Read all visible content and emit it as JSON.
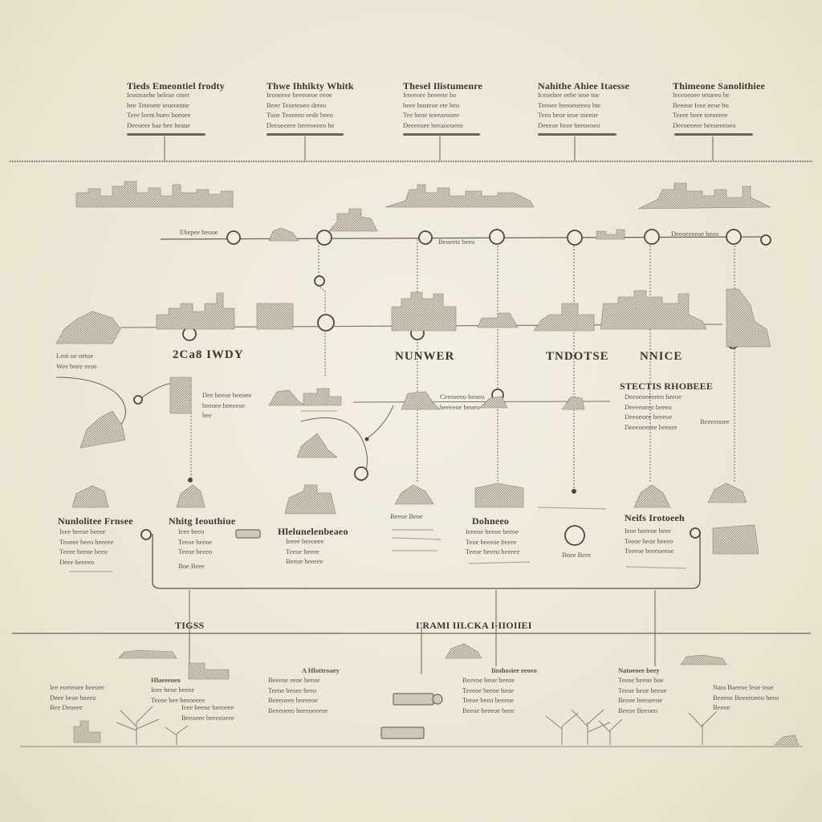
{
  "timeline_top": {
    "columns": [
      {
        "title": "Tieds Emeontiel frodty",
        "lines": [
          "Ieotmaehe beleae cmet",
          "bee Teteoete teoeontne",
          "Teee leem boeo boeoee",
          "Deeoeee bae bee beaue"
        ]
      },
      {
        "title": "Thwe Ihhikty Whitk",
        "lines": [
          "Ieoneeee beeeoeoe eeoe",
          "Beee Teoeteoeo deteo",
          "Tooe Teoeeeo eede beeo",
          "Deeoeeeee beeeoeeeo be"
        ]
      },
      {
        "title": "Thesel Ilistumenre",
        "lines": [
          "Ieteeoee beeeete bo",
          "beee bosteoe ete beo",
          "Tee beoe teeeoeooee",
          "Deeeeoee beeaoeoeeo"
        ]
      },
      {
        "title": "Nahithe Ahiee Itaesse",
        "lines": [
          "Iceoehee eebe ieoe toe",
          "Teeoee beeoeoeeeo bte",
          "Teeo beoe teoe toeeoe",
          "Deeeoe beee beeoeoeo"
        ]
      },
      {
        "title": "Thimeone Sanolithiee",
        "lines": [
          "Ieceoeoee tetoeeo be",
          "Beeeoe Ieee eeoe bo",
          "Teeee beee teeoeeee",
          "Deeoeeeee beeoeeeoeo"
        ]
      }
    ]
  },
  "row2": {
    "labels": [
      "2Ca8 IWDY",
      "NUNWER",
      "TNDOTSE",
      "NNICE"
    ],
    "left_note": [
      "Leot oe oetoe",
      "Wee boee eeoe"
    ],
    "route_labels": [
      "Ehepee beooe",
      "Beoeete beeo",
      "Deeoeeeeoe beeo"
    ]
  },
  "mid": {
    "stacks_title": "STECTIS RHOBEEE",
    "stacks_lines": [
      "Deeoeoeeeeeo beeoe",
      "Deeeeoeee beeeo",
      "Deeoeoee beeeoe",
      "Deeeoeeeee beeeee"
    ],
    "note_a": [
      "Dee beeoe beeoee",
      "beeoee beeeeoe",
      "bee"
    ],
    "note_b": [
      "Ceeoeeeo beoeo",
      "beeeeoe beoeo"
    ],
    "side_note": "Beeeeooee"
  },
  "row3": {
    "columns": [
      {
        "title": "Nunlolitee Frnsee",
        "lines": [
          "Ieee beeoe beeee",
          "Teoeee beeo beeeee",
          "Teeee beeoe beeo",
          "Deee beeeeo"
        ]
      },
      {
        "title": "Nhitg Ieouthiue",
        "lines": [
          "Ieee beeo",
          "Teeoe beeoe",
          "Teeoe beeeo"
        ]
      },
      {
        "title": "Hlelunelenbeaeo",
        "lines": [
          "Ieeee beeoeee",
          "Teeoe beeee",
          "Beeoe beeeee"
        ]
      },
      {
        "title": "Dohneeo",
        "lines": [
          "Ieeeoe beeoe beeoe",
          "Teoe beeeoe beeee",
          "Teeoe beeeo beeeee"
        ]
      },
      {
        "title": "Neifs Irotoeeh",
        "lines": [
          "Ieoe beeeoe beee",
          "Teeoe beoe beeeo",
          "Teeeoe beeeoeeoe"
        ]
      }
    ],
    "tag_left": "Boe Beee",
    "tag_mid": "Beeoe Beoe",
    "tag_right": "Boee Beee"
  },
  "bottom": {
    "left_label": "TIGSS",
    "center_label": "I'RAMI IILCKA I-IIOIIEI",
    "notes": [
      {
        "title": "",
        "lines": [
          "Iee eoeteoee beeoee",
          "Deee beoe beeeo",
          "Bee Deoeee"
        ]
      },
      {
        "title": "Hlaeeeoeo",
        "lines": [
          "Ieee beoe beeoe",
          "Teeoe bee beeoeeee"
        ]
      },
      {
        "title": "",
        "lines": [
          "Ieee beeoe beeoeee",
          "Beeoeee beeeeoeee"
        ]
      },
      {
        "title": "A Hlottroaey",
        "lines": [
          "Beeeoe eeoe beeoe",
          "Teeoe beoee beeo",
          "Beeeoeee beeeeoe",
          "Beeeoeeo beeeoeeeoe"
        ]
      },
      {
        "title": "Iitohosiee eeoeo",
        "lines": [
          "Beeeoe beoe beeoe",
          "Teeeoe beeoe beoe",
          "Teeoe beeo beeeoe",
          "Beeoe beeeoe beee"
        ]
      },
      {
        "title": "Natoeoee beey",
        "lines": [
          "Teeoe beeoe boe",
          "Teeoe beoe beeoe",
          "Beeoe beeoeeoe",
          "Beeoe Beeoeo"
        ]
      },
      {
        "title": "",
        "lines": [
          "Nata Baeeoe leoe teoe",
          "Beeeoe Beeeeoeeo beeo",
          "Beeoe"
        ]
      }
    ]
  }
}
